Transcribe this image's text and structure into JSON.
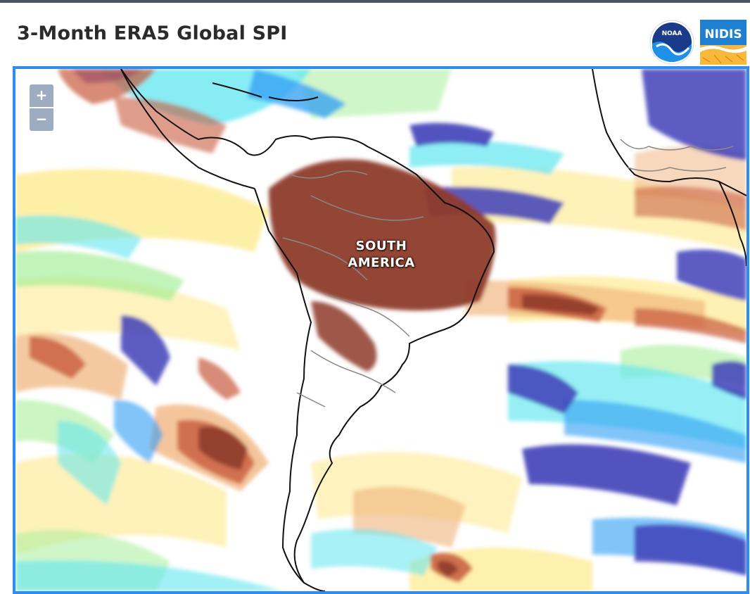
{
  "header": {
    "title": "3-Month ERA5 Global SPI",
    "noaa_logo_text": "NOAA",
    "nidis_logo_text": "NIDIS"
  },
  "map": {
    "zoom_in_label": "+",
    "zoom_out_label": "−",
    "region_label_line1": "SOUTH",
    "region_label_line2": "AMERICA"
  },
  "colors": {
    "frame": "#2f8df0",
    "extreme_dry": "#8e3b2b",
    "severe_dry": "#c85a3c",
    "moderate_dry": "#f0b27a",
    "slight_dry": "#fde98a",
    "near_normal": "#ffffff",
    "slight_wet": "#a8ee9a",
    "moderate_wet": "#5fe6f0",
    "severe_wet": "#2f9df4",
    "extreme_wet": "#4040b8"
  }
}
